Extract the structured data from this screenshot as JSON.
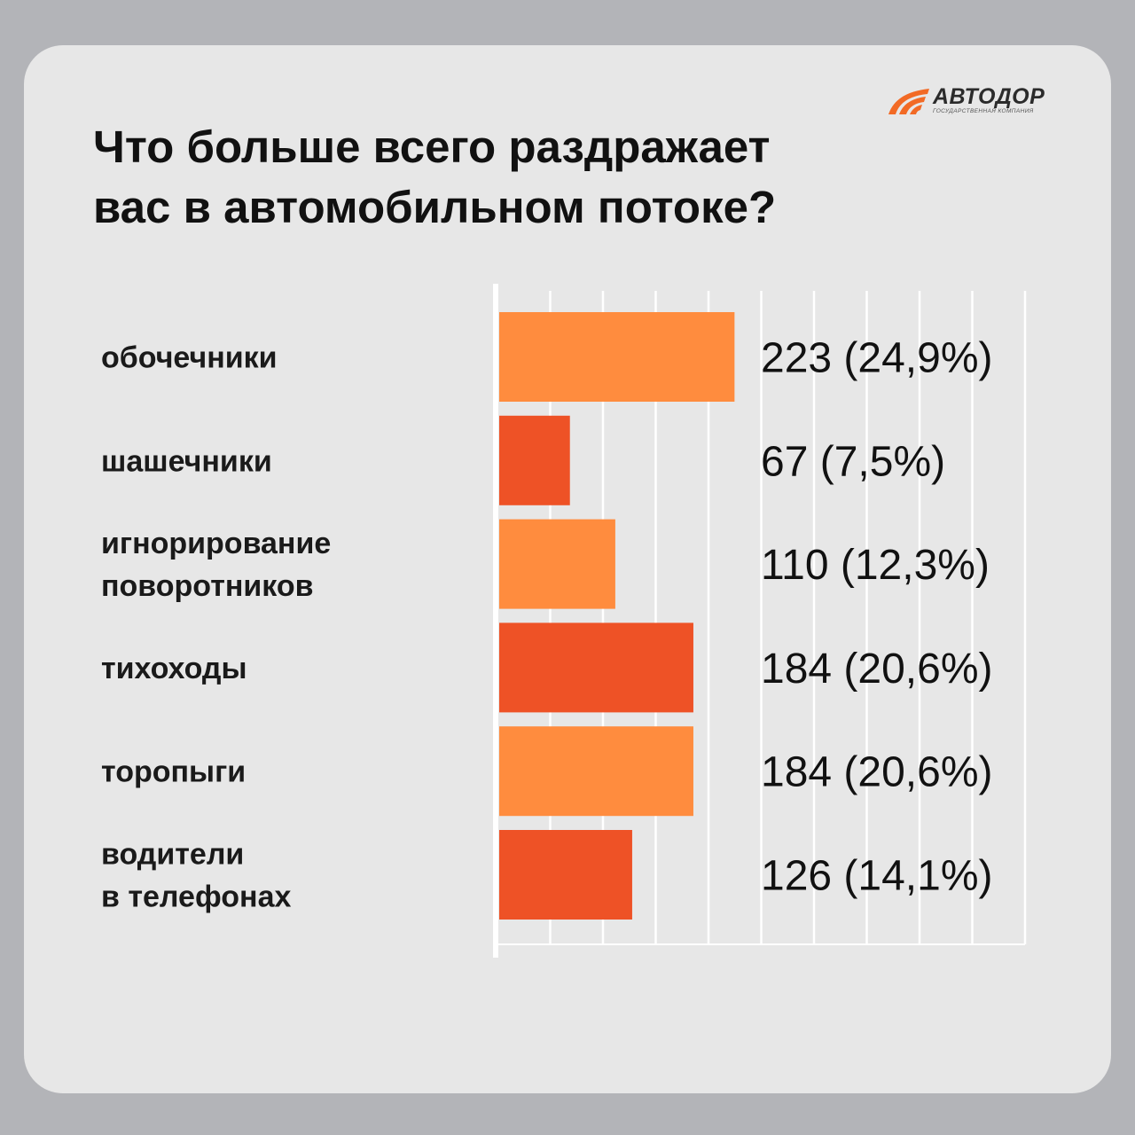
{
  "brand": {
    "name": "АВТОДОР",
    "subtitle": "государственная компания",
    "colors": {
      "primary": "#ff8c3e",
      "secondary": "#ee5226"
    }
  },
  "title": "Что больше всего раздражает\nвас в автомобильном потоке?",
  "chart_data": {
    "type": "bar",
    "orientation": "horizontal",
    "title": "Что больше всего раздражает вас в автомобильном потоке?",
    "xlabel": "",
    "ylabel": "",
    "xlim": [
      0,
      500
    ],
    "grid": true,
    "categories": [
      [
        "обочечники"
      ],
      [
        "шашечники"
      ],
      [
        "игнорирование",
        "поворотников"
      ],
      [
        "тихоходы"
      ],
      [
        "торопыги"
      ],
      [
        "водители",
        "в телефонах"
      ]
    ],
    "values": [
      223,
      67,
      110,
      184,
      184,
      126
    ],
    "data_labels": [
      "223 (24,9%)",
      "67 (7,5%)",
      "110 (12,3%)",
      "184 (20,6%)",
      "184 (20,6%)",
      "126 (14,1%)"
    ],
    "bar_colors": [
      "#ff8c3e",
      "#ee5226",
      "#ff8c3e",
      "#ee5226",
      "#ff8c3e",
      "#ee5226"
    ]
  }
}
